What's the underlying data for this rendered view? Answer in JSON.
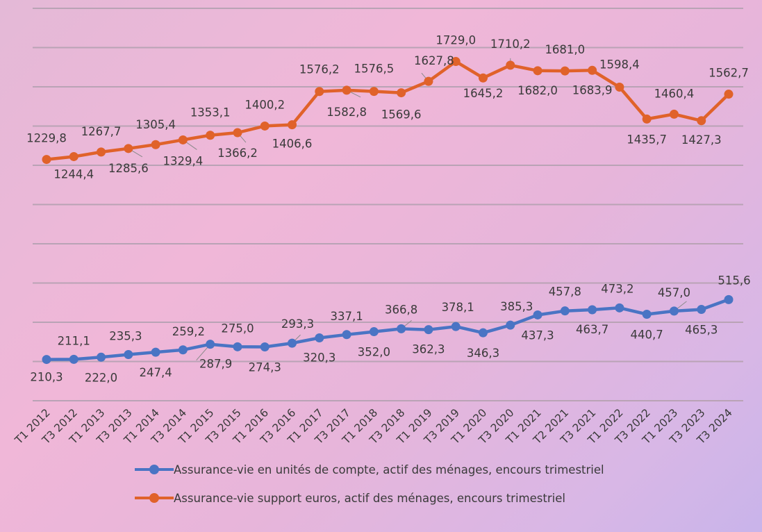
{
  "chart_data": {
    "type": "line",
    "categories": [
      "T1 2012",
      "T3 2012",
      "T1 2013",
      "T3 2013",
      "T1 2014",
      "T3 2014",
      "T1 2015",
      "T3 2015",
      "T1 2016",
      "T3 2016",
      "T1 2017",
      "T3 2017",
      "T1 2018",
      "T3 2018",
      "T1 2019",
      "T3 2019",
      "T1 2020",
      "T3 2020",
      "T1 2021",
      "T2 2021",
      "T3 2021",
      "T1 2022",
      "T3 2022",
      "T1 2023",
      "T3 2023",
      "T3 2024"
    ],
    "series": [
      {
        "name": "Assurance-vie en unités de compte, actif des ménages, encours trimestriel",
        "color": "#4a74c4",
        "values": [
          210.3,
          211.1,
          222.0,
          235.3,
          247.4,
          259.2,
          287.9,
          275.0,
          274.3,
          293.3,
          320.3,
          337.1,
          352.0,
          366.8,
          362.3,
          378.1,
          346.3,
          385.3,
          437.3,
          457.8,
          463.7,
          473.2,
          440.7,
          457.0,
          465.3,
          515.6
        ],
        "labels": [
          "210,3",
          "211,1",
          "222,0",
          "235,3",
          "247,4",
          "259,2",
          "287,9",
          "275,0",
          "274,3",
          "293,3",
          "320,3",
          "337,1",
          "352,0",
          "366,8",
          "362,3",
          "378,1",
          "346,3",
          "385,3",
          "437,3",
          "457,8",
          "463,7",
          "473,2",
          "440,7",
          "457,0",
          "465,3",
          "515,6"
        ]
      },
      {
        "name": "Assurance-vie support euros, actif des ménages, encours trimestriel",
        "color": "#e0622a",
        "values": [
          1229.8,
          1244.4,
          1267.7,
          1285.6,
          1305.4,
          1329.4,
          1353.1,
          1366.2,
          1400.2,
          1406.6,
          1576.2,
          1582.8,
          1576.5,
          1569.6,
          1627.8,
          1729.0,
          1645.2,
          1710.2,
          1682.0,
          1681.0,
          1683.9,
          1598.4,
          1435.7,
          1460.4,
          1427.3,
          1562.7
        ],
        "labels": [
          "1229,8",
          "1244,4",
          "1267,7",
          "1285,6",
          "1305,4",
          "1329,4",
          "1353,1",
          "1366,2",
          "1400,2",
          "1406,6",
          "1576,2",
          "1582,8",
          "1576,5",
          "1569,6",
          "1627,8",
          "1729,0",
          "1645,2",
          "1710,2",
          "1682,0",
          "1681,0",
          "1683,9",
          "1598,4",
          "1435,7",
          "1460,4",
          "1427,3",
          "1562,7"
        ]
      }
    ],
    "ylim": [
      0,
      2000
    ],
    "grid": true,
    "title": "",
    "xlabel": "",
    "ylabel": "",
    "legend_position": "bottom"
  }
}
